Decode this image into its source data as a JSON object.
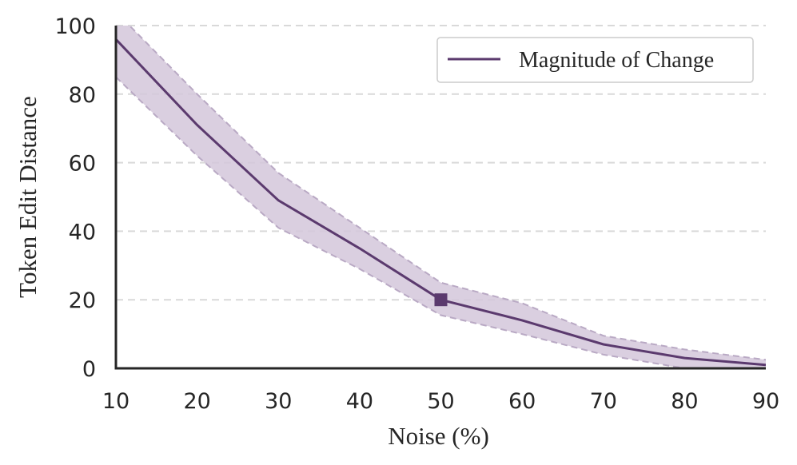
{
  "chart_data": {
    "type": "line",
    "title": "",
    "xlabel": "Noise (%)",
    "ylabel": "Token Edit Distance",
    "xlim": [
      10,
      90
    ],
    "ylim": [
      0,
      100
    ],
    "x_ticks": [
      10,
      20,
      30,
      40,
      50,
      60,
      70,
      80,
      90
    ],
    "y_ticks": [
      0,
      20,
      40,
      60,
      80,
      100
    ],
    "grid": "horizontal dashed",
    "legend_position": "top-right",
    "series": [
      {
        "name": "Magnitude of Change",
        "color": "#5b3a6e",
        "band_color": "#d3c7da",
        "x": [
          10,
          20,
          30,
          40,
          50,
          60,
          70,
          80,
          90
        ],
        "values": [
          96,
          71,
          49,
          35,
          20,
          14,
          7,
          3,
          1
        ],
        "lower": [
          85,
          62,
          41,
          29,
          15.5,
          10,
          4,
          0,
          0
        ],
        "upper": [
          104,
          80,
          57,
          41,
          25,
          19,
          9.5,
          5.5,
          2.5
        ],
        "highlight": {
          "x": 50,
          "y": 20,
          "marker": "square"
        }
      }
    ]
  }
}
